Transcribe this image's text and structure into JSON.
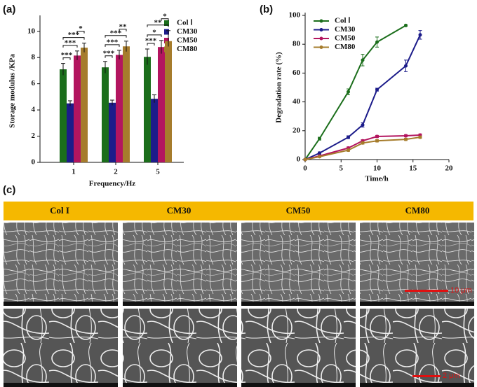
{
  "panels": [
    "(a)",
    "(b)",
    "(c)"
  ],
  "chart_data": [
    {
      "type": "bar",
      "xlabel": "Frequency/Hz",
      "ylabel": "Storage modulus /KPa",
      "categories": [
        "1",
        "2",
        "5"
      ],
      "series": [
        {
          "name": "Col Ⅰ",
          "color": "#1b6e1b",
          "values": [
            7.1,
            7.25,
            8.05
          ],
          "errors": [
            0.45,
            0.45,
            0.6
          ]
        },
        {
          "name": "CM30",
          "color": "#1c1c8a",
          "values": [
            4.5,
            4.55,
            4.85
          ],
          "errors": [
            0.2,
            0.2,
            0.3
          ]
        },
        {
          "name": "CM50",
          "color": "#b3155f",
          "values": [
            8.15,
            8.2,
            8.8
          ],
          "errors": [
            0.35,
            0.35,
            0.5
          ]
        },
        {
          "name": "CM80",
          "color": "#a67c2c",
          "values": [
            8.75,
            8.85,
            9.25
          ],
          "errors": [
            0.35,
            0.4,
            0.8
          ]
        }
      ],
      "significance": [
        {
          "category": 0,
          "from": 0,
          "to": 1,
          "label": "***"
        },
        {
          "category": 0,
          "from": 0,
          "to": 2,
          "label": "***"
        },
        {
          "category": 0,
          "from": 0,
          "to": 3,
          "label": "***"
        },
        {
          "category": 0,
          "from": 2,
          "to": 3,
          "label": "*"
        },
        {
          "category": 1,
          "from": 0,
          "to": 1,
          "label": "***"
        },
        {
          "category": 1,
          "from": 0,
          "to": 2,
          "label": "***"
        },
        {
          "category": 1,
          "from": 0,
          "to": 3,
          "label": "***"
        },
        {
          "category": 1,
          "from": 2,
          "to": 3,
          "label": "**"
        },
        {
          "category": 2,
          "from": 0,
          "to": 1,
          "label": "***"
        },
        {
          "category": 2,
          "from": 0,
          "to": 2,
          "label": "*"
        },
        {
          "category": 2,
          "from": 0,
          "to": 3,
          "label": "**"
        },
        {
          "category": 2,
          "from": 2,
          "to": 3,
          "label": "*"
        }
      ],
      "ylim": [
        0,
        11
      ],
      "yticks": [
        0,
        2,
        4,
        6,
        8,
        10
      ],
      "grid": false
    },
    {
      "type": "line",
      "xlabel": "Time/h",
      "ylabel": "Degradation rate (%)",
      "series": [
        {
          "name": "Col Ⅰ",
          "color": "#1b6e1b",
          "x": [
            0,
            2,
            6,
            8,
            10,
            14
          ],
          "values": [
            0,
            14.5,
            47,
            69,
            81.5,
            93
          ],
          "errors": [
            0.5,
            1,
            2,
            4,
            3.5,
            0.5
          ]
        },
        {
          "name": "CM30",
          "color": "#1c1c8a",
          "x": [
            0,
            2,
            6,
            8,
            10,
            14,
            16
          ],
          "values": [
            0,
            4.5,
            15.5,
            24,
            48.5,
            65,
            86.5
          ],
          "errors": [
            0.5,
            0.8,
            1,
            1.5,
            1,
            4,
            3
          ]
        },
        {
          "name": "CM50",
          "color": "#b3155f",
          "x": [
            0,
            2,
            6,
            8,
            10,
            14,
            16
          ],
          "values": [
            0,
            2.5,
            8,
            13,
            16,
            16.5,
            17
          ],
          "errors": [
            0.3,
            0.5,
            0.8,
            0.8,
            0.8,
            0.8,
            0.8
          ]
        },
        {
          "name": "CM80",
          "color": "#a67c2c",
          "x": [
            0,
            2,
            6,
            8,
            10,
            14,
            16
          ],
          "values": [
            0,
            2,
            6.5,
            11.5,
            13,
            14,
            15.5
          ],
          "errors": [
            0.3,
            0.5,
            0.8,
            0.8,
            0.8,
            0.8,
            0.8
          ]
        }
      ],
      "xlim": [
        0,
        20
      ],
      "xticks": [
        0,
        5,
        10,
        15,
        20
      ],
      "ylim": [
        0,
        100
      ],
      "yticks": [
        0,
        20,
        40,
        60,
        80,
        100
      ],
      "grid": false
    }
  ],
  "sem": {
    "columns": [
      "Col I",
      "CM30",
      "CM50",
      "CM80"
    ],
    "scale_bars": [
      "10 μm",
      "2 μm"
    ]
  }
}
